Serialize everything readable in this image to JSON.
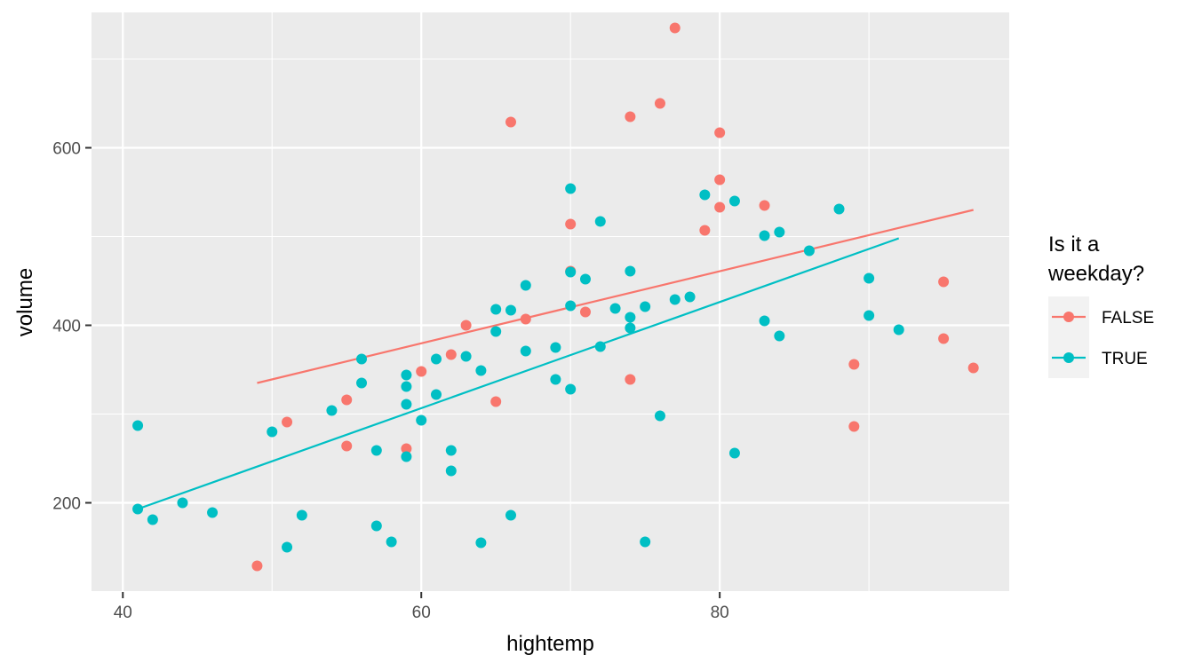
{
  "chart_data": {
    "type": "scatter",
    "title": "",
    "xlabel": "hightemp",
    "ylabel": "volume",
    "xlim": [
      37.9,
      99.4
    ],
    "ylim": [
      99.5,
      752.5
    ],
    "x_ticks": [
      40,
      60,
      80
    ],
    "y_ticks": [
      200,
      400,
      600
    ],
    "x_tick_labels": [
      "40",
      "60",
      "80"
    ],
    "y_tick_labels": [
      "200",
      "400",
      "600"
    ],
    "grid": true,
    "legend": {
      "title_lines": [
        "Is it a",
        "weekday?"
      ],
      "placement": "right"
    },
    "series": [
      {
        "name": "FALSE",
        "color": "#F8766D",
        "points": [
          [
            49,
            129
          ],
          [
            51,
            291
          ],
          [
            55,
            316
          ],
          [
            55,
            264
          ],
          [
            59,
            261
          ],
          [
            60,
            348
          ],
          [
            62,
            367
          ],
          [
            63,
            400
          ],
          [
            65,
            314
          ],
          [
            66,
            629
          ],
          [
            67,
            407
          ],
          [
            70,
            514
          ],
          [
            70,
            461
          ],
          [
            71,
            415
          ],
          [
            74,
            635
          ],
          [
            74,
            339
          ],
          [
            76,
            650
          ],
          [
            77,
            735
          ],
          [
            79,
            507
          ],
          [
            80,
            617
          ],
          [
            80,
            564
          ],
          [
            80,
            533
          ],
          [
            83,
            535
          ],
          [
            89,
            356
          ],
          [
            89,
            286
          ],
          [
            95,
            449
          ],
          [
            95,
            385
          ],
          [
            97,
            352
          ]
        ],
        "fit": {
          "x": [
            49,
            97
          ],
          "y": [
            335,
            530
          ]
        }
      },
      {
        "name": "TRUE",
        "color": "#00BFC4",
        "points": [
          [
            41,
            287
          ],
          [
            41,
            193
          ],
          [
            42,
            181
          ],
          [
            44,
            200
          ],
          [
            46,
            189
          ],
          [
            50,
            280
          ],
          [
            51,
            150
          ],
          [
            52,
            186
          ],
          [
            54,
            304
          ],
          [
            56,
            362
          ],
          [
            56,
            335
          ],
          [
            57,
            259
          ],
          [
            57,
            174
          ],
          [
            58,
            156
          ],
          [
            59,
            344
          ],
          [
            59,
            331
          ],
          [
            59,
            311
          ],
          [
            59,
            252
          ],
          [
            60,
            293
          ],
          [
            61,
            362
          ],
          [
            61,
            322
          ],
          [
            62,
            259
          ],
          [
            62,
            236
          ],
          [
            63,
            365
          ],
          [
            64,
            349
          ],
          [
            64,
            155
          ],
          [
            65,
            418
          ],
          [
            65,
            393
          ],
          [
            66,
            417
          ],
          [
            66,
            186
          ],
          [
            67,
            445
          ],
          [
            67,
            371
          ],
          [
            69,
            375
          ],
          [
            69,
            339
          ],
          [
            70,
            554
          ],
          [
            70,
            460
          ],
          [
            70,
            422
          ],
          [
            70,
            328
          ],
          [
            71,
            452
          ],
          [
            72,
            517
          ],
          [
            72,
            376
          ],
          [
            73,
            419
          ],
          [
            74,
            461
          ],
          [
            74,
            409
          ],
          [
            74,
            397
          ],
          [
            75,
            421
          ],
          [
            75,
            156
          ],
          [
            76,
            298
          ],
          [
            77,
            429
          ],
          [
            78,
            432
          ],
          [
            79,
            547
          ],
          [
            81,
            540
          ],
          [
            81,
            256
          ],
          [
            83,
            501
          ],
          [
            83,
            405
          ],
          [
            84,
            505
          ],
          [
            84,
            388
          ],
          [
            86,
            484
          ],
          [
            88,
            531
          ],
          [
            90,
            453
          ],
          [
            90,
            411
          ],
          [
            92,
            395
          ]
        ],
        "fit": {
          "x": [
            41,
            92
          ],
          "y": [
            193,
            498
          ]
        }
      }
    ]
  }
}
